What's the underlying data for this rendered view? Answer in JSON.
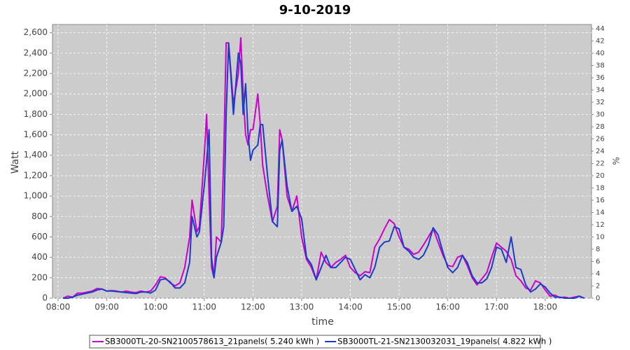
{
  "chart_data": {
    "type": "line",
    "title": "9-10-2019",
    "xlabel": "time",
    "ylabel": "Watt",
    "y2label": "%",
    "x": [
      8.1,
      8.2,
      8.3,
      8.4,
      8.5,
      8.6,
      8.7,
      8.8,
      8.9,
      9.0,
      9.1,
      9.2,
      9.3,
      9.4,
      9.5,
      9.6,
      9.7,
      9.8,
      9.9,
      10.0,
      10.1,
      10.2,
      10.3,
      10.4,
      10.5,
      10.6,
      10.7,
      10.75,
      10.85,
      10.9,
      11.0,
      11.05,
      11.1,
      11.15,
      11.2,
      11.25,
      11.35,
      11.4,
      11.45,
      11.5,
      11.6,
      11.7,
      11.75,
      11.8,
      11.85,
      11.9,
      11.95,
      12.0,
      12.1,
      12.15,
      12.2,
      12.3,
      12.4,
      12.5,
      12.55,
      12.6,
      12.7,
      12.8,
      12.9,
      13.0,
      13.1,
      13.2,
      13.3,
      13.4,
      13.5,
      13.6,
      13.7,
      13.8,
      13.9,
      14.0,
      14.1,
      14.2,
      14.3,
      14.4,
      14.5,
      14.6,
      14.7,
      14.8,
      14.9,
      15.0,
      15.1,
      15.2,
      15.3,
      15.4,
      15.5,
      15.6,
      15.7,
      15.8,
      15.9,
      16.0,
      16.1,
      16.2,
      16.3,
      16.4,
      16.5,
      16.6,
      16.7,
      16.8,
      16.9,
      17.0,
      17.1,
      17.2,
      17.3,
      17.4,
      17.5,
      17.6,
      17.7,
      17.8,
      17.9,
      18.0,
      18.1,
      18.2,
      18.3,
      18.4,
      18.5,
      18.6,
      18.7,
      18.8
    ],
    "series": [
      {
        "name": "SB3000TL-20-SN2100578613_21panels( 5.240 kWh )",
        "color": "#cc00cc",
        "values": [
          0,
          20,
          10,
          50,
          50,
          60,
          70,
          95,
          90,
          70,
          75,
          70,
          60,
          70,
          60,
          55,
          70,
          60,
          70,
          130,
          210,
          200,
          150,
          120,
          150,
          300,
          600,
          960,
          650,
          700,
          1400,
          1800,
          1000,
          300,
          200,
          600,
          550,
          1400,
          2500,
          2500,
          1900,
          2200,
          2550,
          2000,
          1600,
          1500,
          1650,
          1650,
          2000,
          1700,
          1300,
          1000,
          750,
          900,
          1650,
          1550,
          1000,
          850,
          1000,
          600,
          380,
          300,
          180,
          450,
          350,
          300,
          350,
          380,
          420,
          300,
          250,
          220,
          260,
          250,
          500,
          580,
          680,
          770,
          730,
          600,
          500,
          480,
          430,
          450,
          520,
          600,
          680,
          550,
          420,
          320,
          310,
          400,
          420,
          320,
          200,
          130,
          190,
          250,
          400,
          540,
          500,
          460,
          380,
          220,
          170,
          100,
          80,
          170,
          150,
          80,
          20,
          30,
          5,
          10,
          0,
          10,
          20,
          0
        ]
      },
      {
        "name": "SB3000TL-21-SN2130032031_19panels( 4.822 kWh )",
        "color": "#1a3cc8",
        "values": [
          0,
          0,
          10,
          30,
          40,
          50,
          60,
          80,
          90,
          70,
          70,
          65,
          60,
          55,
          50,
          45,
          60,
          60,
          50,
          80,
          180,
          190,
          160,
          100,
          100,
          150,
          350,
          800,
          600,
          650,
          1100,
          1350,
          1650,
          400,
          200,
          400,
          550,
          700,
          1800,
          2500,
          1800,
          2400,
          2300,
          1800,
          2100,
          1600,
          1350,
          1450,
          1500,
          1700,
          1700,
          1200,
          750,
          700,
          1450,
          1550,
          1100,
          850,
          900,
          780,
          400,
          330,
          180,
          300,
          420,
          300,
          300,
          350,
          400,
          380,
          280,
          180,
          230,
          200,
          300,
          500,
          550,
          560,
          700,
          680,
          500,
          460,
          400,
          380,
          420,
          520,
          690,
          620,
          450,
          300,
          250,
          300,
          420,
          350,
          220,
          150,
          150,
          190,
          300,
          500,
          480,
          350,
          600,
          300,
          280,
          130,
          60,
          90,
          140,
          110,
          50,
          10,
          10,
          0,
          0,
          0,
          20,
          0
        ]
      }
    ],
    "xlim": [
      7.885,
      18.95
    ],
    "xticks": [
      {
        "value": 8,
        "label": "08:00"
      },
      {
        "value": 9,
        "label": "09:00"
      },
      {
        "value": 10,
        "label": "10:00"
      },
      {
        "value": 11,
        "label": "11:00"
      },
      {
        "value": 12,
        "label": "12:00"
      },
      {
        "value": 13,
        "label": "13:00"
      },
      {
        "value": 14,
        "label": "14:00"
      },
      {
        "value": 15,
        "label": "15:00"
      },
      {
        "value": 16,
        "label": "16:00"
      },
      {
        "value": 17,
        "label": "17:00"
      },
      {
        "value": 18,
        "label": "18:00"
      }
    ],
    "ylim": [
      0,
      2680
    ],
    "yticks": [
      0,
      200,
      400,
      600,
      800,
      {
        "value": 1000,
        "label": "1,000"
      },
      {
        "value": 1200,
        "label": "1,200"
      },
      {
        "value": 1400,
        "label": "1,400"
      },
      {
        "value": 1600,
        "label": "1,600"
      },
      {
        "value": 1800,
        "label": "1,800"
      },
      {
        "value": 2000,
        "label": "2,000"
      },
      {
        "value": 2200,
        "label": "2,200"
      },
      {
        "value": 2400,
        "label": "2,400"
      },
      {
        "value": 2600,
        "label": "2,600"
      }
    ],
    "y2lim": [
      0,
      44.7
    ],
    "y2ticks": [
      0,
      2,
      4,
      6,
      8,
      10,
      12,
      14,
      16,
      18,
      20,
      22,
      24,
      26,
      28,
      30,
      32,
      34,
      36,
      38,
      40,
      42,
      44
    ],
    "grid": true,
    "legend": "bottom"
  }
}
